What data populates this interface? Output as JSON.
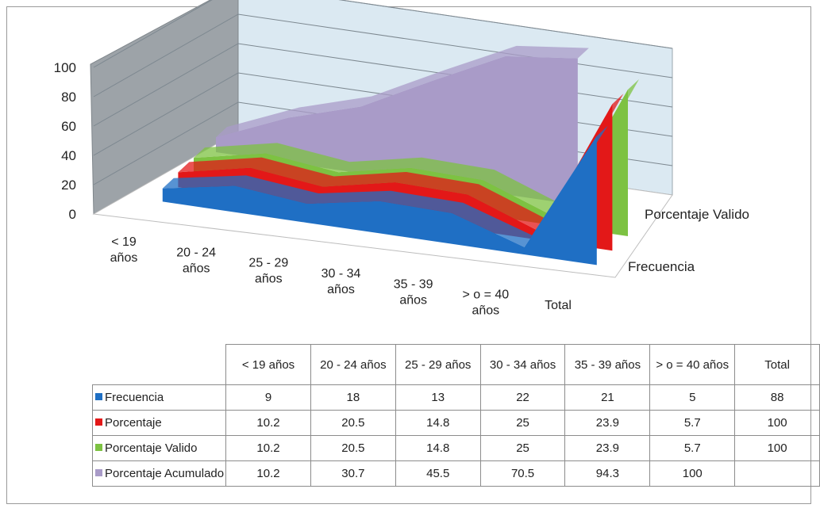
{
  "chart_data": {
    "type": "area",
    "subtype": "3d-area",
    "categories": [
      "< 19 años",
      "20 - 24 años",
      "25 - 29 años",
      "30 - 34 años",
      "35 - 39 años",
      "> o = 40 años",
      "Total"
    ],
    "series": [
      {
        "name": "Frecuencia",
        "values": [
          9,
          18,
          13,
          22,
          21,
          5,
          88
        ],
        "color": "#1f6fc4"
      },
      {
        "name": "Porcentaje",
        "values": [
          10.2,
          20.5,
          14.8,
          25,
          23.9,
          5.7,
          100
        ],
        "color": "#e31818"
      },
      {
        "name": "Porcentaje Valido",
        "values": [
          10.2,
          20.5,
          14.8,
          25,
          23.9,
          5.7,
          100
        ],
        "color": "#7dc242"
      },
      {
        "name": "Porcentaje Acumulado",
        "values": [
          10.2,
          30.7,
          45.5,
          70.5,
          94.3,
          100,
          null
        ],
        "color": "#a99bc8"
      }
    ],
    "ylim": [
      0,
      100
    ],
    "yticks": [
      "0",
      "20",
      "40",
      "60",
      "80",
      "100"
    ],
    "depth_labels": [
      "Porcentaje Valido",
      "Frecuencia"
    ],
    "grid": true,
    "legend": "data-table"
  },
  "table": {
    "headers": [
      "< 19 años",
      "20 - 24 años",
      "25 - 29 años",
      "30 - 34 años",
      "35 - 39 años",
      "> o = 40 años",
      "Total"
    ],
    "rows": [
      {
        "label": "Frecuencia",
        "color": "#1f6fc4",
        "cells": [
          "9",
          "18",
          "13",
          "22",
          "21",
          "5",
          "88"
        ]
      },
      {
        "label": "Porcentaje",
        "color": "#e31818",
        "cells": [
          "10.2",
          "20.5",
          "14.8",
          "25",
          "23.9",
          "5.7",
          "100"
        ]
      },
      {
        "label": "Porcentaje Valido",
        "color": "#7dc242",
        "cells": [
          "10.2",
          "20.5",
          "14.8",
          "25",
          "23.9",
          "5.7",
          "100"
        ]
      },
      {
        "label": "Porcentaje Acumulado",
        "color": "#a99bc8",
        "cells": [
          "10.2",
          "30.7",
          "45.5",
          "70.5",
          "94.3",
          "100",
          ""
        ]
      }
    ]
  }
}
